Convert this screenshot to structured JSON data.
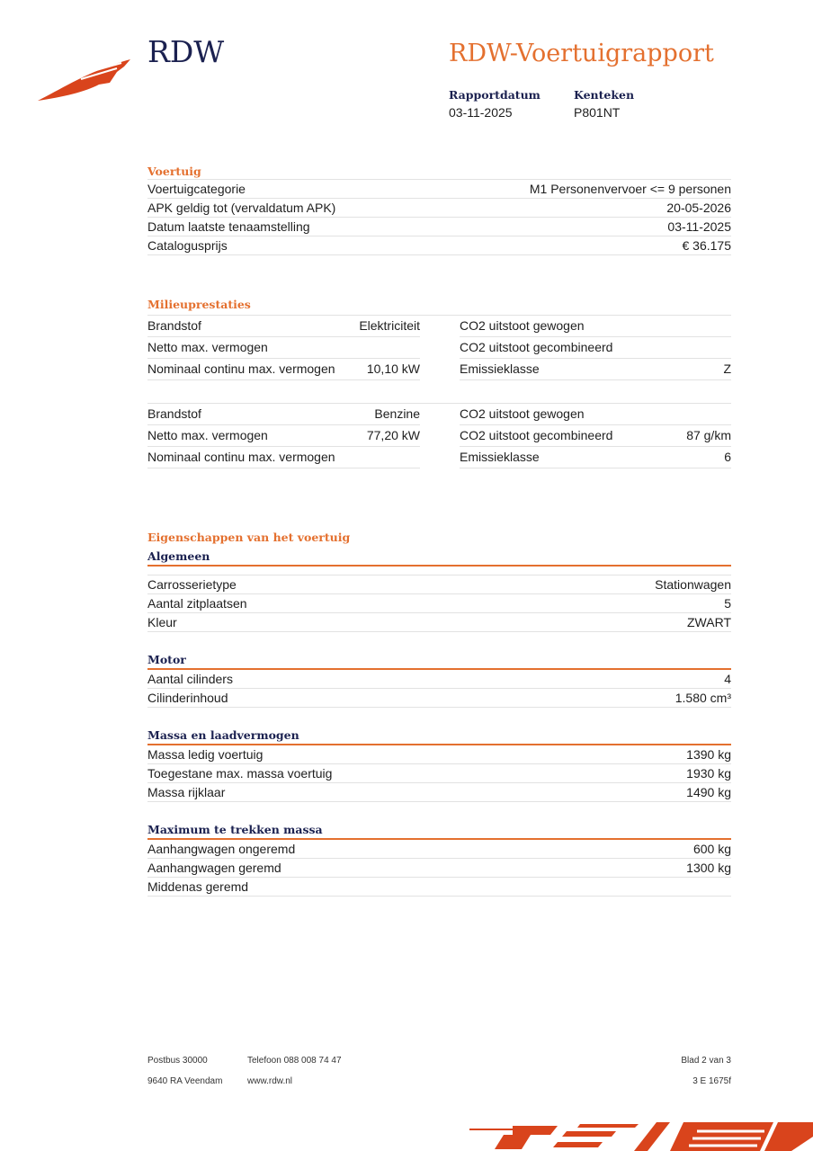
{
  "header": {
    "brand": "RDW",
    "title": "RDW-Voertuigrapport",
    "rapportdatum_label": "Rapportdatum",
    "rapportdatum": "03-11-2025",
    "kenteken_label": "Kenteken",
    "kenteken": "P801NT"
  },
  "voertuig": {
    "heading": "Voertuig",
    "rows": [
      {
        "label": "Voertuigcategorie",
        "value": "M1 Personenvervoer <= 9 personen"
      },
      {
        "label": "APK geldig tot (vervaldatum APK)",
        "value": "20-05-2026"
      },
      {
        "label": "Datum laatste tenaamstelling",
        "value": "03-11-2025"
      },
      {
        "label": "Catalogusprijs",
        "value": "€ 36.175"
      }
    ]
  },
  "milieu": {
    "heading": "Milieuprestaties",
    "blocks": [
      [
        [
          "Brandstof",
          "Elektriciteit",
          "CO2 uitstoot gewogen",
          ""
        ],
        [
          "Netto max. vermogen",
          "",
          "CO2 uitstoot gecombineerd",
          ""
        ],
        [
          "Nominaal continu max. vermogen",
          "10,10 kW",
          "Emissieklasse",
          "Z"
        ]
      ],
      [
        [
          "Brandstof",
          "Benzine",
          "CO2 uitstoot gewogen",
          ""
        ],
        [
          "Netto max. vermogen",
          "77,20 kW",
          "CO2 uitstoot gecombineerd",
          "87 g/km"
        ],
        [
          "Nominaal continu max. vermogen",
          "",
          "Emissieklasse",
          "6"
        ]
      ]
    ]
  },
  "eigenschappen": {
    "heading": "Eigenschappen van het voertuig",
    "groups": [
      {
        "title": "Algemeen",
        "rows": [
          [
            "Carrosserietype",
            "Stationwagen"
          ],
          [
            "Aantal zitplaatsen",
            "5"
          ],
          [
            "Kleur",
            "ZWART"
          ]
        ]
      },
      {
        "title": "Motor",
        "rows": [
          [
            "Aantal cilinders",
            "4"
          ],
          [
            "Cilinderinhoud",
            "1.580 cm³"
          ]
        ]
      },
      {
        "title": "Massa en laadvermogen",
        "rows": [
          [
            "Massa ledig voertuig",
            "1390 kg"
          ],
          [
            "Toegestane max. massa voertuig",
            "1930 kg"
          ],
          [
            "Massa rijklaar",
            "1490 kg"
          ]
        ]
      },
      {
        "title": "Maximum te trekken massa",
        "rows": [
          [
            "Aanhangwagen ongeremd",
            "600 kg"
          ],
          [
            "Aanhangwagen geremd",
            "1300 kg"
          ],
          [
            "Middenas geremd",
            ""
          ]
        ]
      }
    ]
  },
  "footer": {
    "postbus": "Postbus 30000",
    "adres": "9640 RA Veendam",
    "telefoon": "Telefoon 088 008 74 47",
    "web": "www.rdw.nl",
    "blad": "Blad 2 van 3",
    "code": "3 E 1675f"
  },
  "colors": {
    "accent": "#e4702f",
    "navy": "#1b2150",
    "logo": "#d9441c"
  }
}
